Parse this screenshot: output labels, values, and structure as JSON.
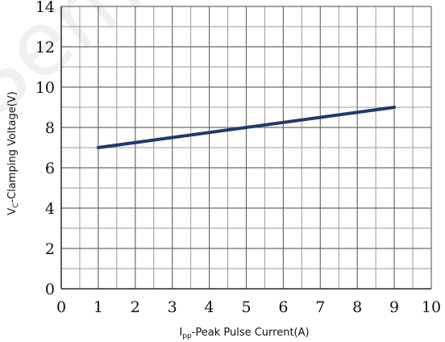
{
  "chart_data": {
    "type": "line",
    "title": "",
    "xlabel": "I",
    "xlabel_sub": "pp",
    "xlabel_rest": "-Peak Pulse Current(A)",
    "ylabel": "V",
    "ylabel_sub": "C",
    "ylabel_rest": "-Clamping Voltage(V)",
    "xlim": [
      0,
      10
    ],
    "ylim": [
      0,
      14
    ],
    "xticks": [
      "0",
      "1",
      "2",
      "3",
      "4",
      "5",
      "6",
      "7",
      "8",
      "9",
      "10"
    ],
    "yticks": [
      "0",
      "2",
      "4",
      "6",
      "8",
      "10",
      "12",
      "14"
    ],
    "grid": true,
    "series": [
      {
        "x": [
          1,
          9
        ],
        "values": [
          7.0,
          9.0
        ],
        "color": "#1f3a6e"
      }
    ],
    "watermark": "Semi"
  }
}
